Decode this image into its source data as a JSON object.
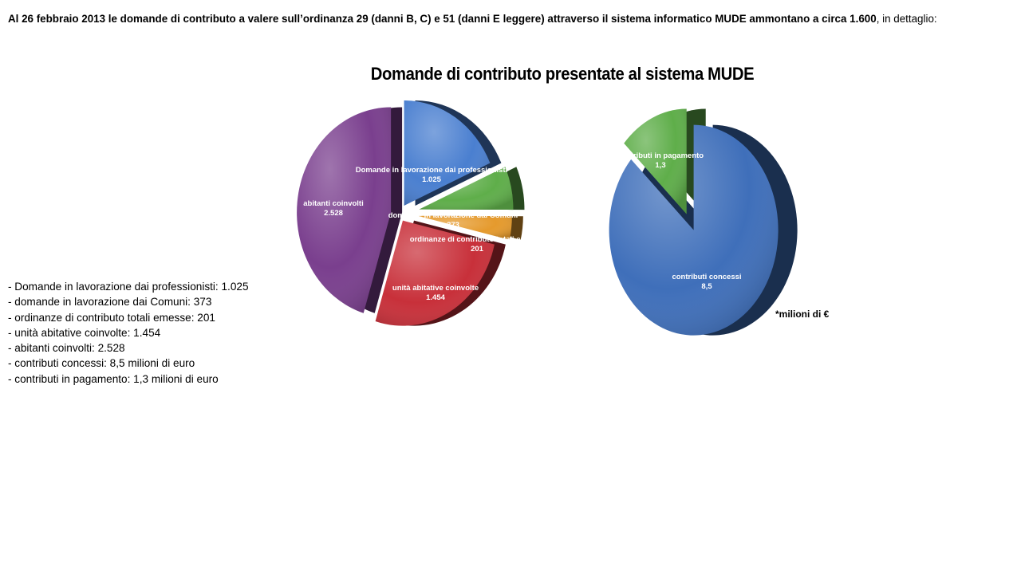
{
  "header": {
    "bold": "Al 26 febbraio 2013 le domande di contributo a valere sull’ordinanza 29 (danni B, C) e 51 (danni E leggere) attraverso il sistema informatico MUDE ammontano a circa 1.600",
    "rest": ", in dettaglio:"
  },
  "details": [
    "- Domande  in lavorazione dai professionisti: 1.025",
    "- domande  in lavorazione dai Comuni: 373",
    "- ordinanze  di contributo  totali emesse: 201",
    "- unità abitative coinvolte: 1.454",
    "- abitanti coinvolti: 2.528",
    "- contributi  concessi: 8,5 milioni di euro",
    "- contributi  in pagamento: 1,3 milioni di euro"
  ],
  "unit_note": "*milioni di €",
  "chart_data": [
    {
      "type": "pie",
      "title": "Domande di contributo presentate al sistema MUDE",
      "slices": [
        {
          "label": "Domande in lavorazione dai professionisti",
          "value_label": "1.025",
          "value": 1025,
          "color": "#4a7fd0"
        },
        {
          "label": "domande in lavorazione dai Comuni",
          "value_label": "373",
          "value": 373,
          "color": "#5fae4a"
        },
        {
          "label": "ordinanze di contributo totali emesse",
          "value_label": "201",
          "value": 201,
          "color": "#e59a2d"
        },
        {
          "label": "unità abitative coinvolte",
          "value_label": "1.454",
          "value": 1454,
          "color": "#c8303a"
        },
        {
          "label": "abitanti coinvolti",
          "value_label": "2.528",
          "value": 2528,
          "color": "#7a3f8e"
        }
      ]
    },
    {
      "type": "pie",
      "slices": [
        {
          "label": "contributi concessi",
          "value_label": "8,5",
          "value": 8.5,
          "color": "#3f6fba"
        },
        {
          "label": "contributi in pagamento",
          "value_label": "1,3",
          "value": 1.3,
          "color": "#5fae4a"
        }
      ]
    }
  ]
}
